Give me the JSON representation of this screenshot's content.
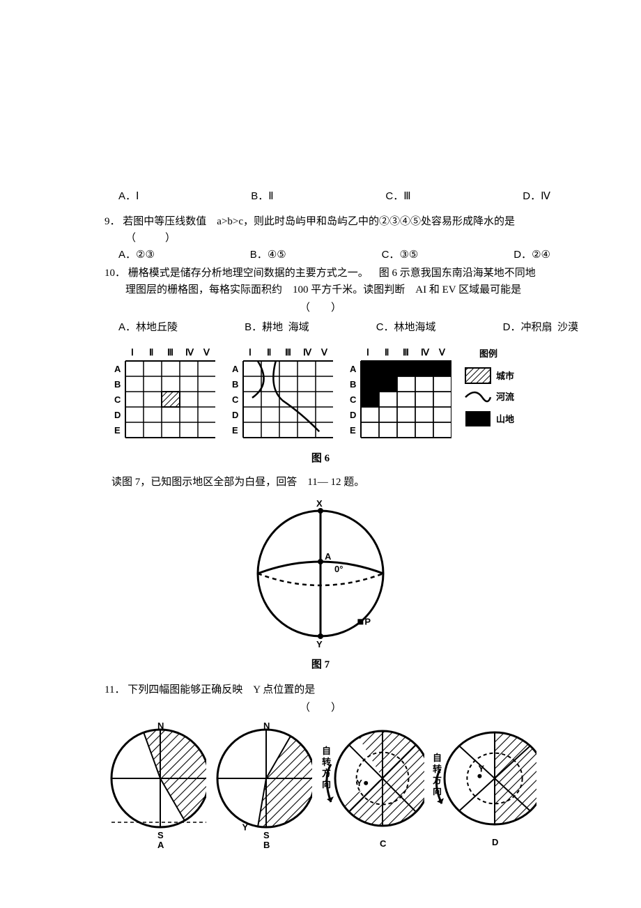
{
  "q8": {
    "options": {
      "A": "Ⅰ",
      "B": "Ⅱ",
      "C": "Ⅲ",
      "D": "Ⅳ"
    }
  },
  "q9": {
    "num": "9．",
    "text_a": "若图中等压线数值",
    "text_b": "a>b>c，则此时岛屿甲和岛屿乙中的②③④⑤处容易形成降水的是",
    "paren": "（　　）",
    "options": {
      "A": "②③",
      "B": "④⑤",
      "C": "③⑤",
      "D": "②④"
    }
  },
  "q10": {
    "num": "10．",
    "line1_a": "栅格模式是储存分析地理空间数据的主要方式之一。",
    "line1_b": "图 6 示意我国东南沿海某地不同地",
    "line2_a": "理图层的栅格图，每格实际面积约",
    "line2_b": "100 平方千米。读图判断",
    "line2_c": "AI 和 EV 区域最可能是",
    "paren": "（　　）",
    "options": {
      "A": "林地丘陵",
      "B_a": "耕地",
      "B_b": "海域",
      "C": "林地海域",
      "D_a": "冲积扇",
      "D_b": "沙漠"
    }
  },
  "fig6": {
    "cols": [
      "Ⅰ",
      "Ⅱ",
      "Ⅲ",
      "Ⅳ",
      "Ⅴ"
    ],
    "rows": [
      "A",
      "B",
      "C",
      "D",
      "E"
    ],
    "legend_title": "图例",
    "legend": {
      "city": "城市",
      "river": "河流",
      "mountain": "山地"
    },
    "caption": "图 6",
    "dark_cells_grid3": [
      [
        0,
        0
      ],
      [
        0,
        1
      ],
      [
        0,
        2
      ],
      [
        0,
        3
      ],
      [
        0,
        4
      ],
      [
        1,
        0
      ],
      [
        1,
        1
      ],
      [
        2,
        0
      ]
    ],
    "hatch_cell_grid1": [
      2,
      2
    ]
  },
  "intro7": {
    "text_a": "读图 7，已知图示地区全部为白昼，回答",
    "text_b": "11— 12 题。"
  },
  "fig7": {
    "labels": {
      "X": "X",
      "A": "A",
      "zero": "0°",
      "P": "P",
      "Y": "Y"
    },
    "caption": "图 7"
  },
  "q11": {
    "num": "11．",
    "text_a": "下列四幅图能够正确反映",
    "text_b": "Y 点位置的是",
    "paren": "（　　）",
    "panel_labels": {
      "A_top": "N",
      "A_bot": "S",
      "A_cap": "A",
      "B_top": "N",
      "B_bot": "S",
      "B_cap": "B",
      "C_cap": "C",
      "D_cap": "D",
      "rot": "自转方向",
      "Y": "Y"
    }
  },
  "colors": {
    "ink": "#000000",
    "bg": "#ffffff"
  }
}
